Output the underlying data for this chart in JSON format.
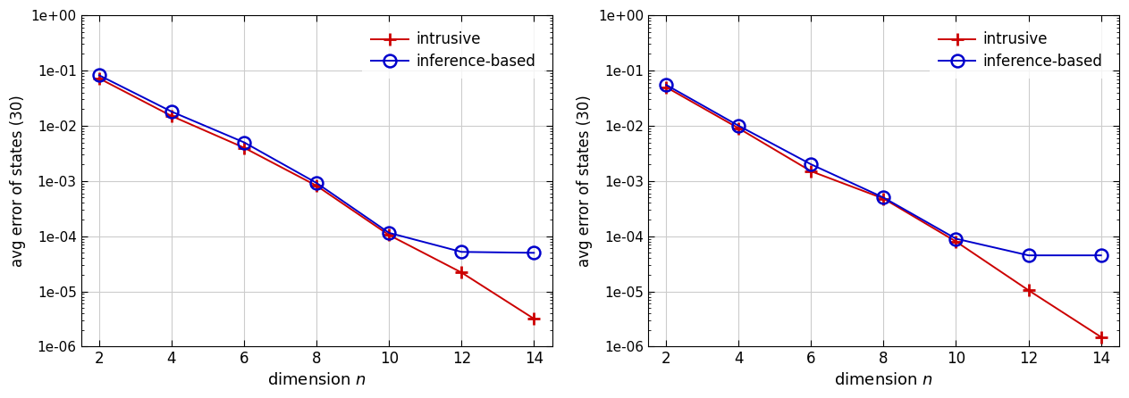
{
  "x": [
    2,
    4,
    6,
    8,
    10,
    12,
    14
  ],
  "left": {
    "intrusive": [
      0.072,
      0.015,
      0.004,
      0.00082,
      0.000105,
      2.2e-05,
      3.2e-06
    ],
    "inference": [
      0.082,
      0.018,
      0.005,
      0.00092,
      0.000115,
      5.2e-05,
      5e-05
    ]
  },
  "right": {
    "intrusive": [
      0.05,
      0.009,
      0.0015,
      0.00048,
      8e-05,
      1.05e-05,
      1.5e-06
    ],
    "inference": [
      0.055,
      0.01,
      0.002,
      0.0005,
      9e-05,
      4.5e-05,
      4.5e-05
    ]
  },
  "ylim": [
    1e-06,
    1.0
  ],
  "xlim": [
    1.5,
    14.5
  ],
  "xticks": [
    2,
    4,
    6,
    8,
    10,
    12,
    14
  ],
  "xlabel": "dimension $n$",
  "ylabel": "avg error of states (30)",
  "intrusive_color": "#cc0000",
  "inference_color": "#0000cc",
  "legend_intrusive": "intrusive",
  "legend_inference": "inference-based",
  "background_color": "#ffffff",
  "grid_color": "#cccccc",
  "ytick_labels": [
    "1e-06",
    "1e-05",
    "1e-04",
    "1e-03",
    "1e-02",
    "1e-01",
    "1e+00"
  ]
}
